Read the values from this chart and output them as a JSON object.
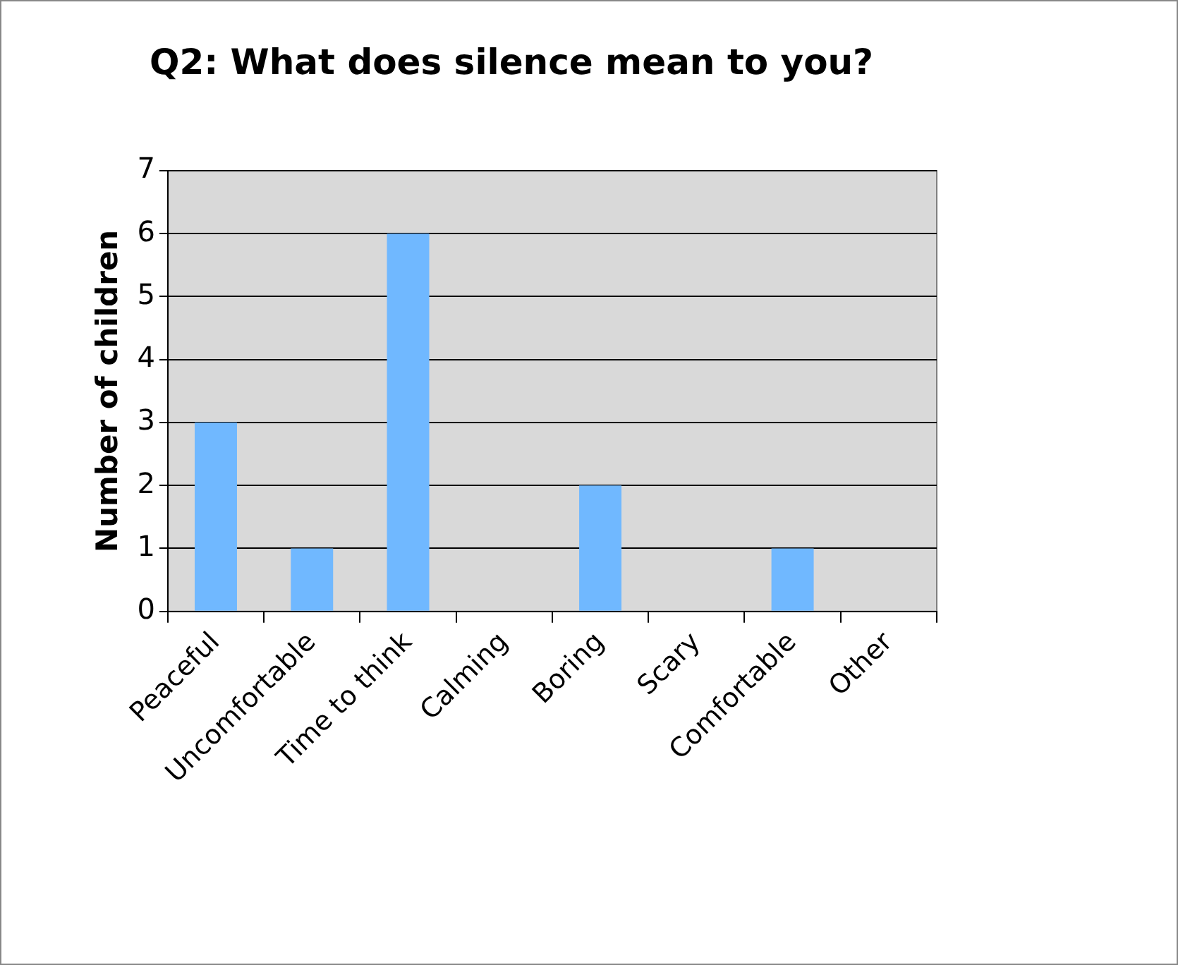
{
  "chart_data": {
    "type": "bar",
    "title": "Q2: What does silence mean to you?",
    "ylabel": "Number of children",
    "categories": [
      "Peaceful",
      "Uncomfortable",
      "Time to think",
      "Calming",
      "Boring",
      "Scary",
      "Comfortable",
      "Other"
    ],
    "values": [
      3,
      1,
      6,
      0,
      2,
      0,
      1,
      0
    ],
    "color": "#70b8ff",
    "ylim": [
      0,
      7
    ],
    "yticks": [
      0,
      1,
      2,
      3,
      4,
      5,
      6,
      7
    ],
    "grid": "y",
    "legend": false
  }
}
